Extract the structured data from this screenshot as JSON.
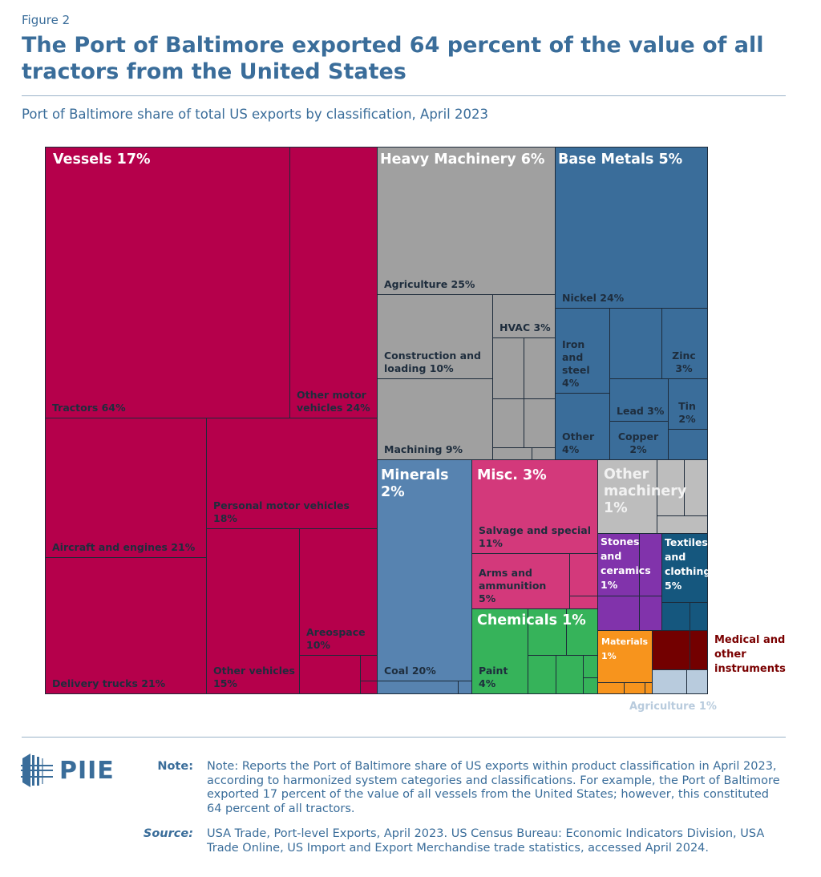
{
  "figure_label": "Figure 2",
  "title": "The Port of Baltimore exported 64 percent of the value of all tractors from the United States",
  "subtitle": "Port of Baltimore share of total US exports by classification, April 2023",
  "chart_data": {
    "type": "treemap",
    "title": "Port of Baltimore share of total US exports by classification, April 2023",
    "groups": [
      {
        "name": "Vessels 17%",
        "color": "#b5004b",
        "children": [
          {
            "label": "Tractors 64%",
            "value": 64
          },
          {
            "label": "Other motor vehicles 24%",
            "value": 24
          },
          {
            "label": "Aircraft and engines 21%",
            "value": 21
          },
          {
            "label": "Delivery trucks 21%",
            "value": 21
          },
          {
            "label": "Personal motor vehicles 18%",
            "value": 18
          },
          {
            "label": "Other vehicles 15%",
            "value": 15
          },
          {
            "label": "Areospace 10%",
            "value": 10
          }
        ]
      },
      {
        "name": "Heavy Machinery 6%",
        "color": "#a0a0a0",
        "children": [
          {
            "label": "Agriculture 25%",
            "value": 25
          },
          {
            "label": "Construction and loading 10%",
            "value": 10
          },
          {
            "label": "Machining 9%",
            "value": 9
          },
          {
            "label": "HVAC 3%",
            "value": 3
          }
        ]
      },
      {
        "name": "Base Metals 5%",
        "color": "#3a6d9a",
        "children": [
          {
            "label": "Nickel 24%",
            "value": 24
          },
          {
            "label": "Iron and steel 4%",
            "value": 4
          },
          {
            "label": "Zinc 3%",
            "value": 3
          },
          {
            "label": "Other 4%",
            "value": 4
          },
          {
            "label": "Lead 3%",
            "value": 3
          },
          {
            "label": "Copper 2%",
            "value": 2
          },
          {
            "label": "Tin 2%",
            "value": 2
          }
        ]
      },
      {
        "name": "Minerals 2%",
        "color": "#5783b0",
        "children": [
          {
            "label": "Coal 20%",
            "value": 20
          }
        ]
      },
      {
        "name": "Misc. 3%",
        "color": "#d3397b",
        "children": [
          {
            "label": "Salvage and special 11%",
            "value": 11
          },
          {
            "label": "Arms and ammunition 5%",
            "value": 5
          }
        ]
      },
      {
        "name": "Chemicals 1%",
        "color": "#36b35a",
        "children": [
          {
            "label": "Paint 4%",
            "value": 4
          }
        ]
      },
      {
        "name": "Other machinery 1%",
        "color": "#bdbdbd",
        "children": []
      },
      {
        "name": "Stones and ceramics 1%",
        "color": "#8133ab",
        "children": []
      },
      {
        "name": "Textiles and clothing 5%",
        "color": "#15577e",
        "children": []
      },
      {
        "name": "Materials 1%",
        "color": "#f7941d",
        "children": []
      },
      {
        "name": "Medical and other instruments",
        "color": "#730000",
        "children": []
      },
      {
        "name": "Agriculture 1%",
        "color": "#b8cbdd",
        "children": []
      }
    ]
  },
  "footer": {
    "logo_text": "PIIE",
    "note_label": "Note:",
    "note_text": "Note: Reports the Port of Baltimore share of US exports within product classification in April 2023, according to harmonized system categories and classifications. For example, the Port of Baltimore exported 17 percent of the value of all vessels from the United States; however, this constituted 64 percent of all tractors.",
    "source_label": "Source:",
    "source_text": "USA Trade, Port-level Exports, April 2023. US Census Bureau: Economic Indicators Division, USA Trade Online, US Import and Export Merchandise trade statistics, accessed April 2024."
  }
}
